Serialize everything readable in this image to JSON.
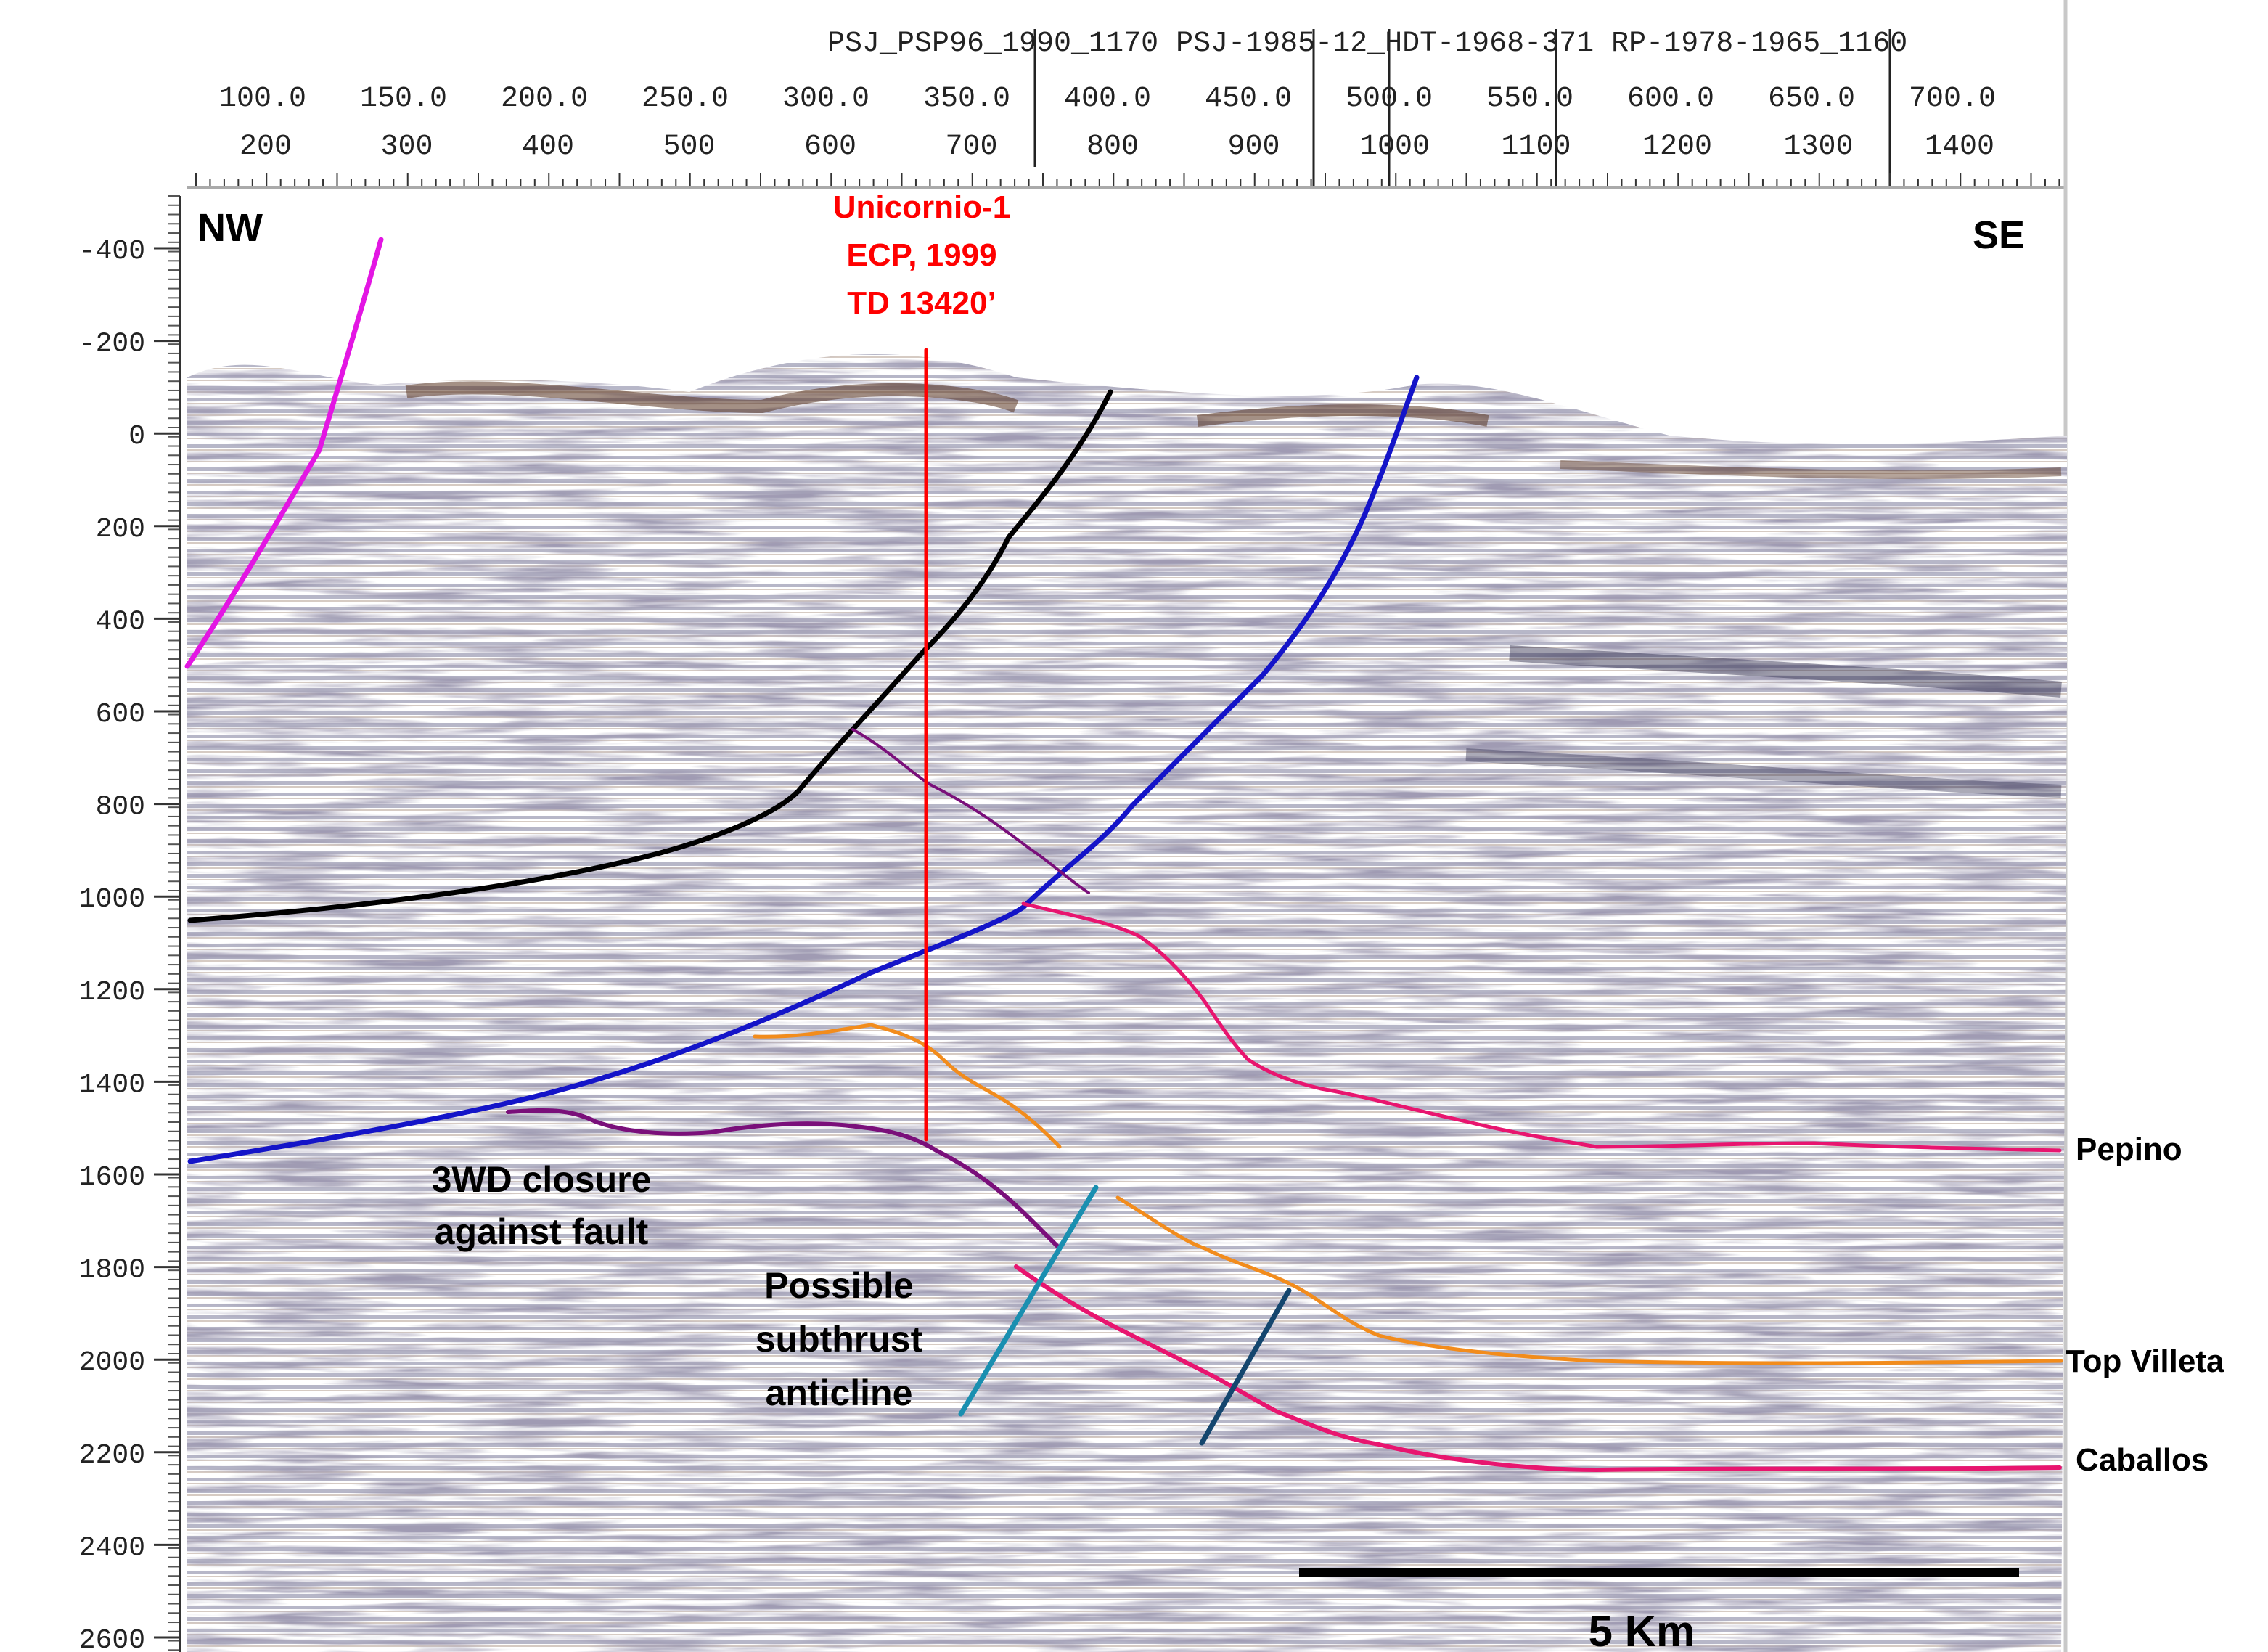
{
  "header": {
    "line_labels": "PSJ_PSP96_1990_1170 PSJ-1985-12_HDT-1968-371 RP-1978-1965_1160",
    "upper_axis": {
      "ticks": [
        "100.0",
        "150.0",
        "200.0",
        "250.0",
        "300.0",
        "350.0",
        "400.0",
        "450.0",
        "500.0",
        "550.0",
        "600.0",
        "650.0",
        "700.0"
      ]
    },
    "lower_axis": {
      "ticks": [
        "200",
        "300",
        "400",
        "500",
        "600",
        "700",
        "800",
        "900",
        "1000",
        "1100",
        "1200",
        "1300",
        "1400"
      ]
    }
  },
  "depth_axis": {
    "ticks": [
      "-400",
      "-200",
      "0",
      "200",
      "400",
      "600",
      "800",
      "1000",
      "1200",
      "1400",
      "1600",
      "1800",
      "2000",
      "2200",
      "2400",
      "2600"
    ]
  },
  "section": {
    "left_direction": "NW",
    "right_direction": "SE",
    "well": {
      "name": "Unicornio-1",
      "operator_year": "ECP, 1999",
      "total_depth": "TD 13420’",
      "color": "#ff0000"
    },
    "annotations": {
      "closure_line1": "3WD closure",
      "closure_line2": "against fault",
      "subthrust_line1": "Possible",
      "subthrust_line2": "subthrust",
      "subthrust_line3": "anticline"
    },
    "horizons": [
      {
        "name": "Pepino",
        "color": "#e8156f"
      },
      {
        "name": "Top Villeta",
        "color": "#f28c1c"
      },
      {
        "name": "Caballos",
        "color": "#e8156f"
      }
    ],
    "fault_colors": {
      "magenta_fault": "#e316e3",
      "black_fault": "#000000",
      "blue_fault": "#1414c8",
      "purple_horizon": "#7a0f7a",
      "teal_fault": "#1a8fb0",
      "dark_teal_fault": "#14466e"
    },
    "scale_bar": "5 Km"
  }
}
